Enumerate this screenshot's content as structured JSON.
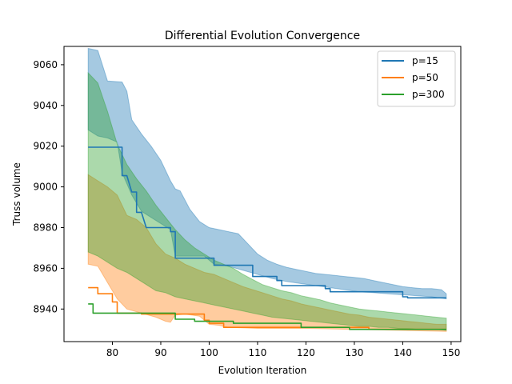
{
  "chart_data": {
    "type": "line",
    "title": "Differential Evolution Convergence",
    "xlabel": "Evolution Iteration",
    "ylabel": "Truss volume",
    "xlim": [
      70,
      152
    ],
    "ylim": [
      8924,
      9069
    ],
    "xticks": [
      80,
      90,
      100,
      110,
      120,
      130,
      140,
      150
    ],
    "yticks": [
      8940,
      8960,
      8980,
      9000,
      9020,
      9040,
      9060
    ],
    "grid": false,
    "legend_position": "top-right",
    "series": [
      {
        "name": "p=15",
        "color": "#1f77b4",
        "band_color": "#1f77b4",
        "line_style": "step",
        "line": [
          [
            75,
            9019.5
          ],
          [
            82,
            9019.5
          ],
          [
            82,
            9005.5
          ],
          [
            83,
            9005.5
          ],
          [
            83,
            9005.5
          ],
          [
            84,
            8997.5
          ],
          [
            85,
            8997.5
          ],
          [
            85,
            8987.5
          ],
          [
            86,
            8987.5
          ],
          [
            86,
            8987.5
          ],
          [
            87,
            8980
          ],
          [
            92,
            8980
          ],
          [
            92,
            8978
          ],
          [
            93,
            8978
          ],
          [
            93,
            8965
          ],
          [
            101,
            8965
          ],
          [
            101,
            8961.5
          ],
          [
            109,
            8961.5
          ],
          [
            109,
            8956
          ],
          [
            114,
            8956
          ],
          [
            114,
            8954
          ],
          [
            115,
            8954
          ],
          [
            115,
            8951.5
          ],
          [
            124,
            8951.5
          ],
          [
            124,
            8950
          ],
          [
            125,
            8950
          ],
          [
            125,
            8948.5
          ],
          [
            140,
            8948.5
          ],
          [
            140,
            8946
          ],
          [
            141,
            8946
          ],
          [
            141,
            8945.5
          ],
          [
            149,
            8945.5
          ]
        ],
        "band_upper": [
          [
            75,
            9068
          ],
          [
            77,
            9067
          ],
          [
            79,
            9052
          ],
          [
            82,
            9051.5
          ],
          [
            83,
            9047
          ],
          [
            84,
            9033
          ],
          [
            86,
            9026
          ],
          [
            88,
            9020
          ],
          [
            90,
            9013
          ],
          [
            92,
            9003
          ],
          [
            93,
            8999
          ],
          [
            94,
            8998
          ],
          [
            96,
            8989
          ],
          [
            98,
            8983
          ],
          [
            100,
            8980
          ],
          [
            102,
            8979
          ],
          [
            104,
            8978
          ],
          [
            106,
            8977
          ],
          [
            108,
            8972
          ],
          [
            110,
            8967
          ],
          [
            112,
            8964
          ],
          [
            114,
            8962
          ],
          [
            116,
            8960.5
          ],
          [
            118,
            8959.5
          ],
          [
            120,
            8958.5
          ],
          [
            122,
            8957.5
          ],
          [
            124,
            8957
          ],
          [
            126,
            8956.5
          ],
          [
            128,
            8956
          ],
          [
            130,
            8955.5
          ],
          [
            132,
            8955
          ],
          [
            134,
            8954
          ],
          [
            136,
            8953
          ],
          [
            138,
            8952
          ],
          [
            140,
            8951
          ],
          [
            142,
            8950.5
          ],
          [
            144,
            8950
          ],
          [
            146,
            8950
          ],
          [
            148,
            8949.5
          ],
          [
            149,
            8947.5
          ]
        ],
        "band_lower": [
          [
            75,
            9028
          ],
          [
            77,
            9025
          ],
          [
            79,
            9024
          ],
          [
            81,
            9022
          ],
          [
            82,
            9007
          ],
          [
            84,
            8996
          ],
          [
            86,
            8988
          ],
          [
            88,
            8985
          ],
          [
            90,
            8982
          ],
          [
            92,
            8979
          ],
          [
            93,
            8966
          ],
          [
            96,
            8966
          ],
          [
            99,
            8966
          ],
          [
            101,
            8962
          ],
          [
            104,
            8961
          ],
          [
            107,
            8959
          ],
          [
            110,
            8957
          ],
          [
            113,
            8955
          ],
          [
            116,
            8953.5
          ],
          [
            119,
            8952.5
          ],
          [
            122,
            8951.5
          ],
          [
            125,
            8950.5
          ],
          [
            128,
            8949.5
          ],
          [
            131,
            8948.5
          ],
          [
            134,
            8948
          ],
          [
            137,
            8947.5
          ],
          [
            140,
            8947
          ],
          [
            143,
            8946.5
          ],
          [
            146,
            8946
          ],
          [
            149,
            8945
          ]
        ]
      },
      {
        "name": "p=50",
        "color": "#ff7f0e",
        "band_color": "#ff7f0e",
        "line_style": "step",
        "line": [
          [
            75,
            8950.5
          ],
          [
            77,
            8950.5
          ],
          [
            77,
            8947.5
          ],
          [
            80,
            8947.5
          ],
          [
            80,
            8943.5
          ],
          [
            81,
            8943.5
          ],
          [
            81,
            8938
          ],
          [
            86,
            8938
          ],
          [
            86,
            8937.5
          ],
          [
            99,
            8937.5
          ],
          [
            99,
            8934.5
          ],
          [
            100,
            8934.5
          ],
          [
            100,
            8933
          ],
          [
            103,
            8933
          ],
          [
            103,
            8931
          ],
          [
            133,
            8931
          ],
          [
            133,
            8930
          ],
          [
            149,
            8930
          ]
        ],
        "band_upper": [
          [
            75,
            9006
          ],
          [
            77,
            9003
          ],
          [
            79,
            9000
          ],
          [
            81,
            8996
          ],
          [
            83,
            8986
          ],
          [
            85,
            8984
          ],
          [
            87,
            8980
          ],
          [
            89,
            8972
          ],
          [
            91,
            8967
          ],
          [
            93,
            8965
          ],
          [
            95,
            8962
          ],
          [
            97,
            8960
          ],
          [
            99,
            8958
          ],
          [
            101,
            8957
          ],
          [
            103,
            8955
          ],
          [
            105,
            8953
          ],
          [
            107,
            8951
          ],
          [
            109,
            8949.5
          ],
          [
            111,
            8948
          ],
          [
            113,
            8946.5
          ],
          [
            115,
            8945
          ],
          [
            117,
            8944
          ],
          [
            119,
            8942.5
          ],
          [
            121,
            8941.5
          ],
          [
            123,
            8940.5
          ],
          [
            125,
            8939.5
          ],
          [
            127,
            8938.5
          ],
          [
            129,
            8937.5
          ],
          [
            131,
            8937
          ],
          [
            133,
            8936
          ],
          [
            135,
            8935.5
          ],
          [
            137,
            8935
          ],
          [
            139,
            8934.5
          ],
          [
            141,
            8934
          ],
          [
            143,
            8933.5
          ],
          [
            145,
            8933
          ],
          [
            147,
            8932.5
          ],
          [
            149,
            8932.5
          ]
        ],
        "band_lower": [
          [
            75,
            8962
          ],
          [
            77,
            8961
          ],
          [
            79,
            8953
          ],
          [
            81,
            8945
          ],
          [
            83,
            8940
          ],
          [
            86,
            8938
          ],
          [
            89,
            8936
          ],
          [
            91,
            8934
          ],
          [
            92,
            8933.5
          ],
          [
            93,
            8937
          ],
          [
            95,
            8937.5
          ],
          [
            98,
            8936.5
          ],
          [
            100,
            8932.5
          ],
          [
            102,
            8932
          ],
          [
            104,
            8931
          ],
          [
            110,
            8930.5
          ],
          [
            120,
            8930.5
          ],
          [
            130,
            8930
          ],
          [
            140,
            8929.5
          ],
          [
            149,
            8929
          ]
        ]
      },
      {
        "name": "p=300",
        "color": "#2ca02c",
        "band_color": "#2ca02c",
        "line_style": "step",
        "line": [
          [
            75,
            8942.5
          ],
          [
            76,
            8942.5
          ],
          [
            76,
            8938
          ],
          [
            93,
            8938
          ],
          [
            93,
            8935
          ],
          [
            97,
            8935
          ],
          [
            97,
            8934
          ],
          [
            105,
            8934
          ],
          [
            105,
            8933
          ],
          [
            119,
            8933
          ],
          [
            119,
            8931
          ],
          [
            129,
            8931
          ],
          [
            129,
            8930
          ],
          [
            149,
            8930
          ]
        ],
        "band_upper": [
          [
            75,
            9056
          ],
          [
            77,
            9051
          ],
          [
            79,
            9037
          ],
          [
            81,
            9021
          ],
          [
            83,
            9011
          ],
          [
            85,
            9004
          ],
          [
            87,
            8998
          ],
          [
            89,
            8991
          ],
          [
            91,
            8985
          ],
          [
            93,
            8979
          ],
          [
            95,
            8974
          ],
          [
            97,
            8970
          ],
          [
            99,
            8967
          ],
          [
            101,
            8964
          ],
          [
            103,
            8962
          ],
          [
            105,
            8960
          ],
          [
            107,
            8957
          ],
          [
            109,
            8954.5
          ],
          [
            111,
            8952
          ],
          [
            113,
            8950.5
          ],
          [
            115,
            8949
          ],
          [
            117,
            8948
          ],
          [
            119,
            8946.5
          ],
          [
            121,
            8945.5
          ],
          [
            123,
            8944.5
          ],
          [
            125,
            8943
          ],
          [
            127,
            8942
          ],
          [
            129,
            8941
          ],
          [
            131,
            8940
          ],
          [
            133,
            8939.5
          ],
          [
            135,
            8939
          ],
          [
            137,
            8938.5
          ],
          [
            139,
            8938
          ],
          [
            141,
            8937.5
          ],
          [
            143,
            8937
          ],
          [
            145,
            8936.5
          ],
          [
            147,
            8936
          ],
          [
            149,
            8935.5
          ]
        ],
        "band_lower": [
          [
            75,
            8968
          ],
          [
            77,
            8966
          ],
          [
            79,
            8963
          ],
          [
            81,
            8960
          ],
          [
            83,
            8958
          ],
          [
            85,
            8955
          ],
          [
            87,
            8952
          ],
          [
            89,
            8949
          ],
          [
            91,
            8948
          ],
          [
            93,
            8946
          ],
          [
            95,
            8945
          ],
          [
            97,
            8944
          ],
          [
            99,
            8943
          ],
          [
            101,
            8942
          ],
          [
            103,
            8941
          ],
          [
            105,
            8940
          ],
          [
            107,
            8939
          ],
          [
            109,
            8938
          ],
          [
            111,
            8937
          ],
          [
            113,
            8936
          ],
          [
            115,
            8935.5
          ],
          [
            117,
            8935
          ],
          [
            119,
            8934.5
          ],
          [
            121,
            8934
          ],
          [
            123,
            8933.5
          ],
          [
            125,
            8933
          ],
          [
            127,
            8932.5
          ],
          [
            129,
            8932
          ],
          [
            131,
            8931.5
          ],
          [
            133,
            8931.5
          ],
          [
            135,
            8931
          ],
          [
            137,
            8931
          ],
          [
            139,
            8930.5
          ],
          [
            141,
            8930.5
          ],
          [
            143,
            8930
          ],
          [
            145,
            8930
          ],
          [
            147,
            8930
          ],
          [
            149,
            8929.5
          ]
        ]
      }
    ]
  }
}
